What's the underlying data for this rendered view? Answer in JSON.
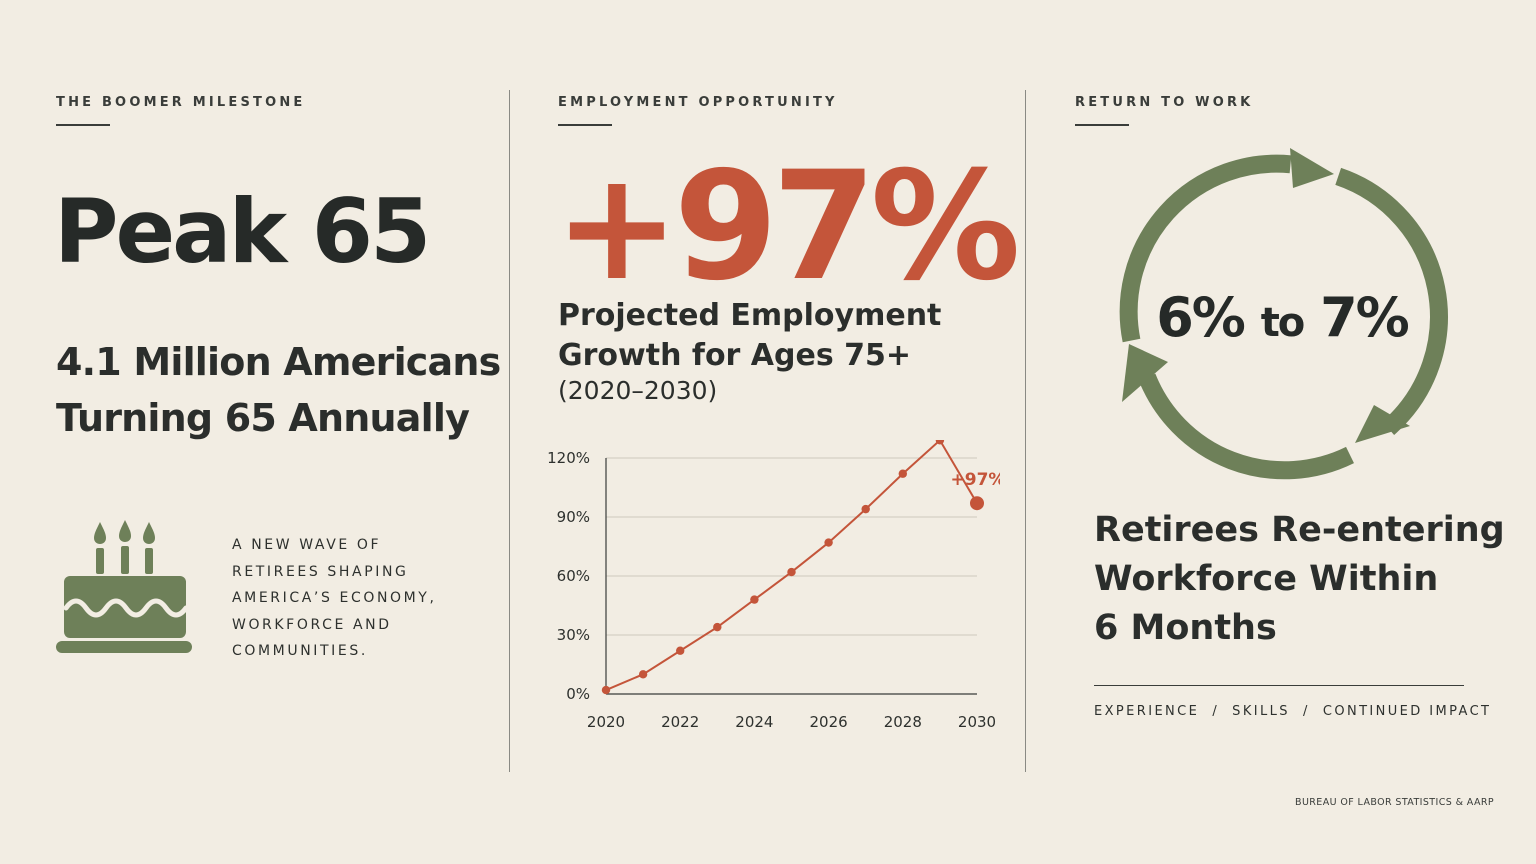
{
  "panel1": {
    "eyebrow": "THE BOOMER MILESTONE",
    "headline": "Peak 65",
    "subheadline": [
      "4.1 Million Americans",
      "Turning 65 Annually"
    ],
    "note": [
      "A NEW WAVE OF",
      "RETIREES SHAPING",
      "AMERICA’S ECONOMY,",
      "WORKFORCE AND",
      "COMMUNITIES."
    ],
    "icon": "birthday-cake-icon"
  },
  "panel2": {
    "eyebrow": "EMPLOYMENT OPPORTUNITY",
    "headline": "+97%",
    "subheadline": [
      "Projected Employment",
      "Growth for Ages 75+"
    ],
    "range": "(2020–2030)"
  },
  "chart_data": {
    "type": "line",
    "x": [
      2020,
      2021,
      2022,
      2023,
      2024,
      2025,
      2026,
      2027,
      2028,
      2029,
      2030
    ],
    "values": [
      2,
      10,
      22,
      34,
      48,
      62,
      77,
      94,
      112,
      129,
      97
    ],
    "series": [
      {
        "values": [
          2,
          10,
          22,
          34,
          48,
          62,
          77,
          94,
          112,
          129,
          97
        ]
      }
    ],
    "xticks": [
      "2020",
      "2022",
      "2024",
      "2026",
      "2028",
      "2030"
    ],
    "yticks": [
      "0%",
      "30%",
      "60%",
      "90%",
      "120%"
    ],
    "ylim": [
      0,
      120
    ],
    "xlim": [
      2020,
      2030
    ],
    "annotation": "+97%",
    "grid": true,
    "color": "#c4553a"
  },
  "panel3": {
    "eyebrow": "RETURN TO WORK",
    "headline_a": "6%",
    "headline_mid": "to",
    "headline_b": "7%",
    "subheadline": [
      "Retirees Re-entering",
      "Workforce Within",
      "6 Months"
    ],
    "tags": "EXPERIENCE  /  SKILLS  /  CONTINUED IMPACT",
    "icon": "cycle-arrows-icon",
    "accent": "#6e8059"
  },
  "source": "BUREAU OF LABOR STATISTICS & AARP"
}
